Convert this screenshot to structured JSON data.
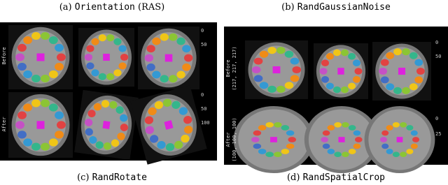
{
  "captions": [
    {
      "label": "(a)",
      "name": "Orientation",
      "suffix": "(RAS)"
    },
    {
      "label": "(b)",
      "name": "RandGaussianNoise"
    },
    {
      "label": "(c)",
      "name": "RandRotate"
    },
    {
      "label": "(d)",
      "name": "RandSpatialCrop"
    }
  ],
  "panels": [
    {
      "rows": [
        {
          "label": "Before",
          "ticks": [
            "0",
            "50"
          ]
        },
        {
          "label": "After",
          "ticks": [
            "0",
            "50",
            "100"
          ]
        }
      ]
    },
    {
      "rows": [
        {
          "label": "Before",
          "sublabel": "(217, 217, 217)",
          "ticks": [
            "0",
            "50"
          ]
        },
        {
          "label": "After",
          "sublabel": "(100, 100, 100)",
          "ticks": [
            "0",
            "25"
          ]
        }
      ]
    }
  ]
}
